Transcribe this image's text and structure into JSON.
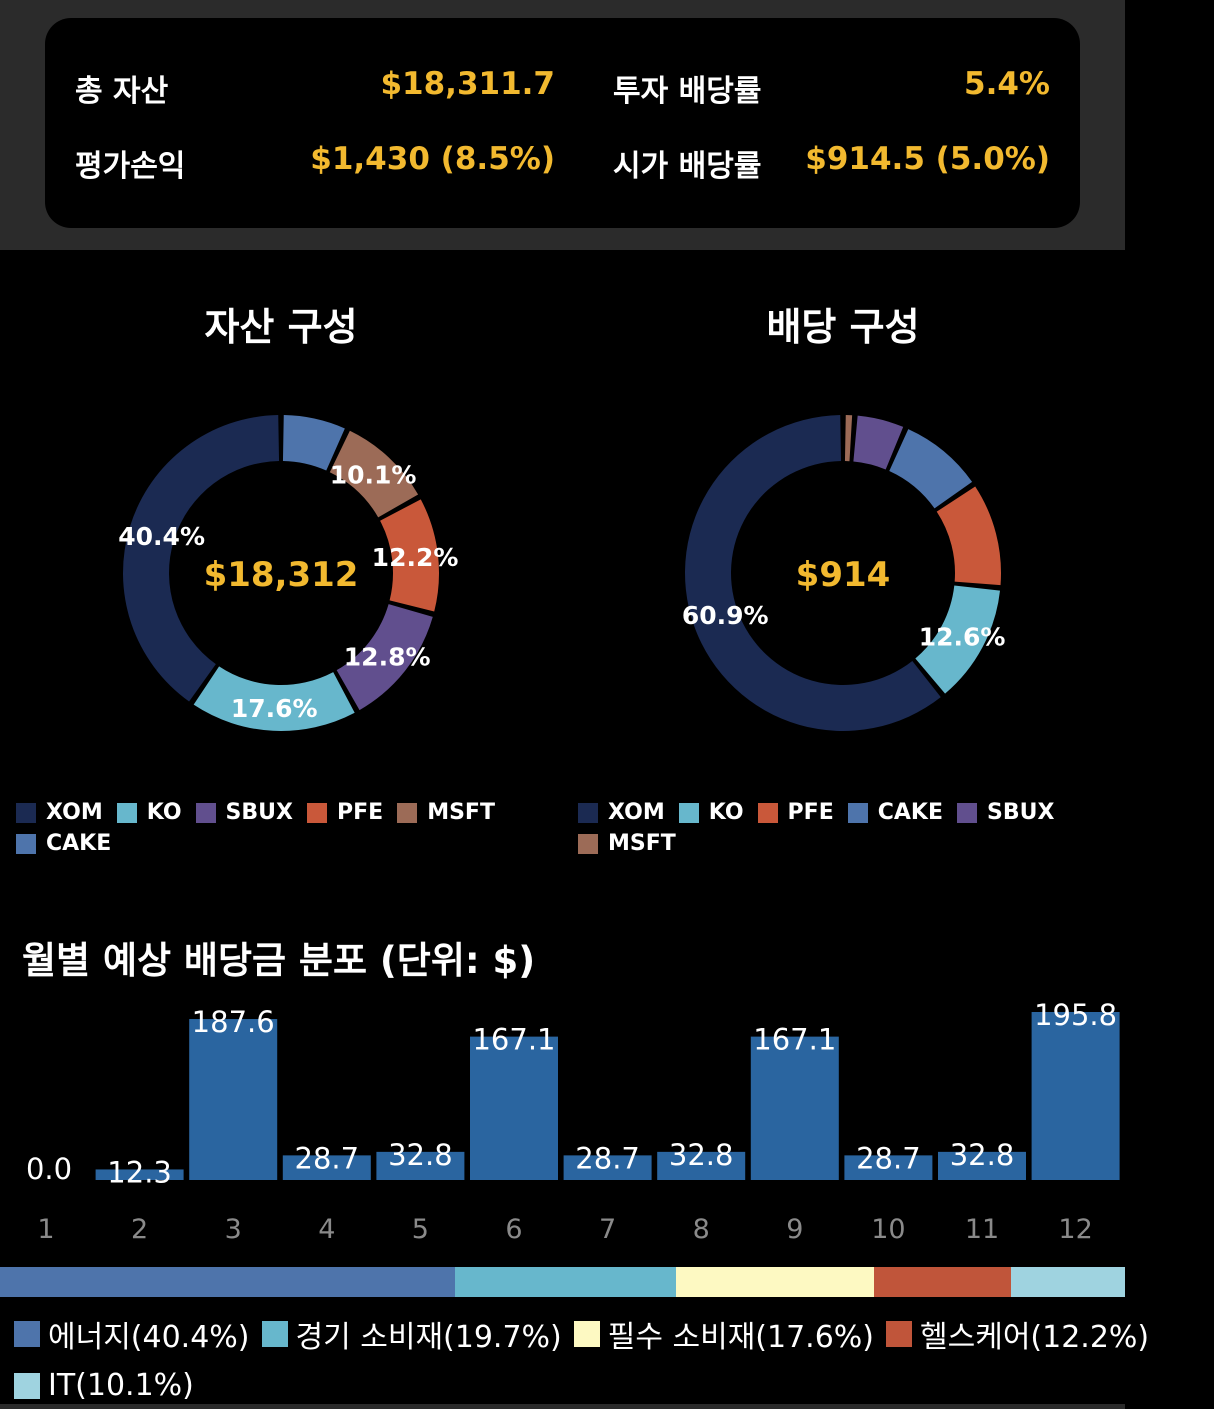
{
  "summary": {
    "total_assets_label": "총 자산",
    "total_assets": "$18,311.7",
    "invest_yield_label": "투자 배당률",
    "invest_yield": "5.4%",
    "pnl_label": "평가손익",
    "pnl": "$1,430 (8.5%)",
    "market_yield_label": "시가 배당률",
    "market_yield": "$914.5 (5.0%)"
  },
  "colors": {
    "XOM": "#1b2a52",
    "KO": "#67b7cc",
    "SBUX": "#614f8e",
    "PFE": "#c9583a",
    "MSFT": "#9c6b57",
    "CAKE": "#4e74ab",
    "accent": "#f2b92f"
  },
  "chart_data": [
    {
      "type": "pie",
      "title": "자산 구성",
      "center_label": "$18,312",
      "slices": [
        {
          "name": "XOM",
          "value": 40.4,
          "label": "40.4%"
        },
        {
          "name": "KO",
          "value": 17.6,
          "label": "17.6%"
        },
        {
          "name": "SBUX",
          "value": 12.8,
          "label": "12.8%"
        },
        {
          "name": "PFE",
          "value": 12.2,
          "label": "12.2%"
        },
        {
          "name": "MSFT",
          "value": 10.1,
          "label": "10.1%"
        },
        {
          "name": "CAKE",
          "value": 6.9,
          "label": ""
        }
      ],
      "legend": [
        "XOM",
        "KO",
        "SBUX",
        "PFE",
        "MSFT",
        "CAKE"
      ]
    },
    {
      "type": "pie",
      "title": "배당 구성",
      "center_label": "$914",
      "slices": [
        {
          "name": "XOM",
          "value": 60.9,
          "label": "60.9%"
        },
        {
          "name": "KO",
          "value": 12.6,
          "label": "12.6%"
        },
        {
          "name": "PFE",
          "value": 11.0,
          "label": ""
        },
        {
          "name": "CAKE",
          "value": 9.0,
          "label": ""
        },
        {
          "name": "SBUX",
          "value": 5.3,
          "label": ""
        },
        {
          "name": "MSFT",
          "value": 1.2,
          "label": ""
        }
      ],
      "legend": [
        "XOM",
        "KO",
        "PFE",
        "CAKE",
        "SBUX",
        "MSFT"
      ]
    },
    {
      "type": "bar",
      "title": "월별 예상 배당금 분포 (단위: $)",
      "color": "#2a65a0",
      "categories": [
        "1",
        "2",
        "3",
        "4",
        "5",
        "6",
        "7",
        "8",
        "9",
        "10",
        "11",
        "12"
      ],
      "values": [
        0.0,
        12.3,
        187.6,
        28.7,
        32.8,
        167.1,
        28.7,
        32.8,
        167.1,
        28.7,
        32.8,
        195.8
      ],
      "labels": [
        "0.0",
        "12.3",
        "187.6",
        "28.7",
        "32.8",
        "167.1",
        "28.7",
        "32.8",
        "167.1",
        "28.7",
        "32.8",
        "195.8"
      ]
    },
    {
      "type": "bar",
      "stacked": true,
      "title": "",
      "series": [
        {
          "name": "에너지",
          "value": 40.4,
          "label": "에너지(40.4%)",
          "color": "#4e74ab"
        },
        {
          "name": "경기 소비재",
          "value": 19.7,
          "label": "경기 소비재(19.7%)",
          "color": "#67b7cc"
        },
        {
          "name": "필수 소비재",
          "value": 17.6,
          "label": "필수 소비재(17.6%)",
          "color": "#fdf9c2"
        },
        {
          "name": "헬스케어",
          "value": 12.2,
          "label": "헬스케어(12.2%)",
          "color": "#c0553a"
        },
        {
          "name": "IT",
          "value": 10.1,
          "label": "IT(10.1%)",
          "color": "#9fd3e0"
        }
      ]
    }
  ]
}
